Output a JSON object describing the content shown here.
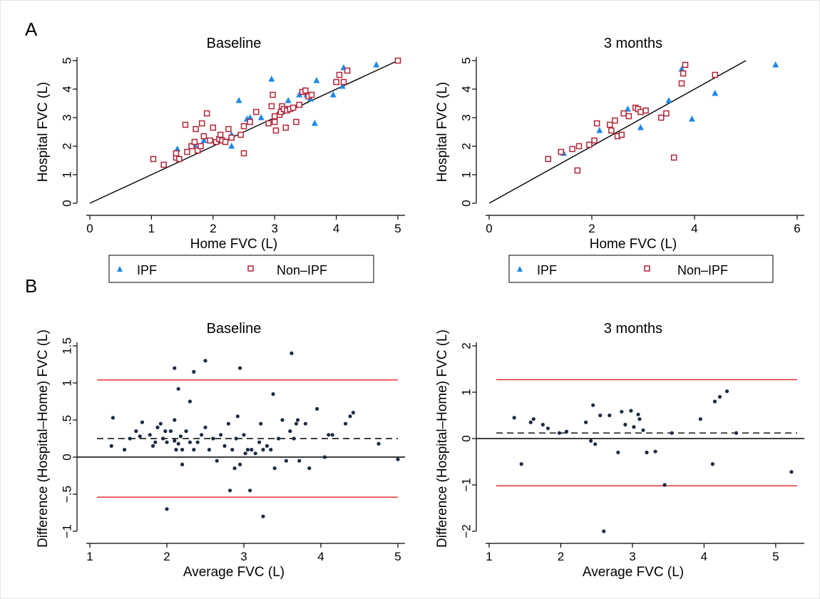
{
  "chart_data": [
    {
      "panel": "A",
      "type": "scatter",
      "title": "Baseline",
      "xlabel": "Home FVC (L)",
      "ylabel": "Hospital FVC (L)",
      "xlim": [
        0,
        5
      ],
      "ylim": [
        0,
        5
      ],
      "xticks": [
        0,
        1,
        2,
        3,
        4,
        5
      ],
      "xtick_labels": [
        "0",
        "1",
        "2",
        "3",
        "4",
        "5"
      ],
      "yticks": [
        0,
        1,
        2,
        3,
        4,
        5
      ],
      "ytick_labels": [
        "0",
        "1",
        "2",
        "3",
        "4",
        "5"
      ],
      "line_of_identity": [
        [
          0,
          0
        ],
        [
          5,
          5
        ]
      ],
      "legend": "below",
      "series": [
        {
          "name": "IPF",
          "marker": "triangle",
          "color": "#1e88e5",
          "points": [
            [
              1.42,
              1.9
            ],
            [
              1.7,
              2.05
            ],
            [
              1.85,
              2.2
            ],
            [
              2.3,
              2.0
            ],
            [
              2.3,
              2.4
            ],
            [
              2.42,
              3.6
            ],
            [
              2.55,
              2.95
            ],
            [
              2.6,
              3.0
            ],
            [
              2.78,
              3.0
            ],
            [
              2.95,
              4.35
            ],
            [
              3.05,
              3.1
            ],
            [
              3.12,
              3.2
            ],
            [
              3.2,
              3.3
            ],
            [
              3.22,
              3.6
            ],
            [
              3.4,
              3.8
            ],
            [
              3.48,
              3.95
            ],
            [
              3.52,
              3.8
            ],
            [
              3.58,
              3.65
            ],
            [
              3.65,
              2.8
            ],
            [
              3.68,
              4.3
            ],
            [
              3.95,
              3.8
            ],
            [
              4.1,
              4.1
            ],
            [
              4.12,
              4.75
            ],
            [
              4.65,
              4.85
            ]
          ]
        },
        {
          "name": "Non-IPF",
          "marker": "square",
          "color": "#b22234",
          "points": [
            [
              1.03,
              1.55
            ],
            [
              1.2,
              1.35
            ],
            [
              1.4,
              1.6
            ],
            [
              1.4,
              1.75
            ],
            [
              1.45,
              1.55
            ],
            [
              1.55,
              2.75
            ],
            [
              1.58,
              1.8
            ],
            [
              1.65,
              2.0
            ],
            [
              1.7,
              2.15
            ],
            [
              1.72,
              2.6
            ],
            [
              1.75,
              1.85
            ],
            [
              1.8,
              2.0
            ],
            [
              1.82,
              2.8
            ],
            [
              1.85,
              2.35
            ],
            [
              1.9,
              3.15
            ],
            [
              1.95,
              2.2
            ],
            [
              2.0,
              2.65
            ],
            [
              2.05,
              2.15
            ],
            [
              2.1,
              2.25
            ],
            [
              2.12,
              2.4
            ],
            [
              2.15,
              2.2
            ],
            [
              2.2,
              2.15
            ],
            [
              2.25,
              2.6
            ],
            [
              2.3,
              2.3
            ],
            [
              2.45,
              2.4
            ],
            [
              2.5,
              1.75
            ],
            [
              2.5,
              2.7
            ],
            [
              2.6,
              2.85
            ],
            [
              2.7,
              3.2
            ],
            [
              2.9,
              2.8
            ],
            [
              2.95,
              3.4
            ],
            [
              2.97,
              3.8
            ],
            [
              3.0,
              2.85
            ],
            [
              3.0,
              3.05
            ],
            [
              3.02,
              2.55
            ],
            [
              3.08,
              3.1
            ],
            [
              3.1,
              3.2
            ],
            [
              3.12,
              3.4
            ],
            [
              3.15,
              3.3
            ],
            [
              3.18,
              2.65
            ],
            [
              3.2,
              3.25
            ],
            [
              3.25,
              3.3
            ],
            [
              3.3,
              3.35
            ],
            [
              3.35,
              2.85
            ],
            [
              3.4,
              3.45
            ],
            [
              3.45,
              3.9
            ],
            [
              3.5,
              3.95
            ],
            [
              3.55,
              3.75
            ],
            [
              3.6,
              3.8
            ],
            [
              4.0,
              4.25
            ],
            [
              4.05,
              4.5
            ],
            [
              4.12,
              4.25
            ],
            [
              4.18,
              4.65
            ],
            [
              5.0,
              5.0
            ]
          ]
        }
      ]
    },
    {
      "panel": "A",
      "type": "scatter",
      "title": "3 months",
      "xlabel": "Home FVC (L)",
      "ylabel": "Hospital FVC (L)",
      "xlim": [
        0,
        6
      ],
      "ylim": [
        0,
        5
      ],
      "xticks": [
        0,
        2,
        4,
        6
      ],
      "xtick_labels": [
        "0",
        "2",
        "4",
        "6"
      ],
      "yticks": [
        0,
        1,
        2,
        3,
        4,
        5
      ],
      "ytick_labels": [
        "0",
        "1",
        "2",
        "3",
        "4",
        "5"
      ],
      "line_of_identity": [
        [
          0,
          0
        ],
        [
          5,
          5
        ]
      ],
      "legend": "below",
      "series": [
        {
          "name": "IPF",
          "marker": "triangle",
          "color": "#1e88e5",
          "points": [
            [
              1.45,
              1.75
            ],
            [
              2.15,
              2.55
            ],
            [
              2.7,
              3.3
            ],
            [
              2.95,
              2.65
            ],
            [
              3.5,
              3.6
            ],
            [
              3.75,
              4.7
            ],
            [
              3.95,
              2.95
            ],
            [
              4.4,
              3.85
            ],
            [
              5.58,
              4.85
            ]
          ]
        },
        {
          "name": "Non-IPF",
          "marker": "square",
          "color": "#b22234",
          "points": [
            [
              1.15,
              1.55
            ],
            [
              1.4,
              1.8
            ],
            [
              1.62,
              1.9
            ],
            [
              1.72,
              1.15
            ],
            [
              1.75,
              2.0
            ],
            [
              1.95,
              2.05
            ],
            [
              2.05,
              2.2
            ],
            [
              2.1,
              2.8
            ],
            [
              2.35,
              2.75
            ],
            [
              2.38,
              2.55
            ],
            [
              2.45,
              2.9
            ],
            [
              2.5,
              2.35
            ],
            [
              2.58,
              2.4
            ],
            [
              2.62,
              3.15
            ],
            [
              2.72,
              3.05
            ],
            [
              2.85,
              3.35
            ],
            [
              2.9,
              3.3
            ],
            [
              2.95,
              3.2
            ],
            [
              3.05,
              3.25
            ],
            [
              3.35,
              3.0
            ],
            [
              3.45,
              3.15
            ],
            [
              3.6,
              1.6
            ],
            [
              3.75,
              4.2
            ],
            [
              3.78,
              4.55
            ],
            [
              3.82,
              4.85
            ],
            [
              4.4,
              4.5
            ]
          ]
        }
      ]
    },
    {
      "panel": "B",
      "type": "scatter",
      "title": "Baseline",
      "xlabel": "Average FVC (L)",
      "ylabel": "Difference (Hospital–Home) FVC (L)",
      "xlim": [
        1,
        5
      ],
      "ylim": [
        -1,
        1.5
      ],
      "xticks": [
        1,
        2,
        3,
        4,
        5
      ],
      "xtick_labels": [
        "1",
        "2",
        "3",
        "4",
        "5"
      ],
      "yticks": [
        -1,
        -0.5,
        0,
        0.5,
        1,
        1.5
      ],
      "ytick_labels": [
        "−1",
        "−.5",
        "0",
        ".5",
        "1",
        "1.5"
      ],
      "mean_difference": 0.25,
      "limits_of_agreement": [
        -0.54,
        1.04
      ],
      "zero_line": 0,
      "series": [
        {
          "name": "",
          "marker": "dot",
          "color": "#1c2a44",
          "points": [
            [
              1.28,
              0.15
            ],
            [
              1.3,
              0.53
            ],
            [
              1.45,
              0.1
            ],
            [
              1.52,
              0.25
            ],
            [
              1.6,
              0.35
            ],
            [
              1.65,
              0.28
            ],
            [
              1.68,
              0.47
            ],
            [
              1.78,
              0.3
            ],
            [
              1.82,
              0.15
            ],
            [
              1.85,
              0.2
            ],
            [
              1.88,
              0.4
            ],
            [
              1.92,
              0.45
            ],
            [
              1.95,
              0.25
            ],
            [
              1.98,
              0.35
            ],
            [
              2.0,
              0.2
            ],
            [
              2.05,
              0.35
            ],
            [
              2.1,
              0.22
            ],
            [
              2.1,
              0.5
            ],
            [
              2.12,
              0.1
            ],
            [
              2.15,
              0.18
            ],
            [
              2.18,
              0.28
            ],
            [
              2.2,
              0.1
            ],
            [
              2.2,
              -0.1
            ],
            [
              2.25,
              0.35
            ],
            [
              2.3,
              0.2
            ],
            [
              2.3,
              0.75
            ],
            [
              2.35,
              0.1
            ],
            [
              2.4,
              0.2
            ],
            [
              2.45,
              0.3
            ],
            [
              2.5,
              0.4
            ],
            [
              2.55,
              0.1
            ],
            [
              2.6,
              0.25
            ],
            [
              2.65,
              -0.05
            ],
            [
              2.7,
              0.3
            ],
            [
              2.75,
              0.15
            ],
            [
              2.8,
              0.45
            ],
            [
              2.82,
              -0.45
            ],
            [
              2.85,
              0.1
            ],
            [
              2.88,
              -0.15
            ],
            [
              2.9,
              0.25
            ],
            [
              2.92,
              0.55
            ],
            [
              2.95,
              -0.1
            ],
            [
              3.0,
              0.3
            ],
            [
              3.02,
              0.05
            ],
            [
              3.05,
              0.1
            ],
            [
              3.08,
              -0.45
            ],
            [
              3.1,
              0.1
            ],
            [
              3.15,
              0.05
            ],
            [
              3.2,
              0.2
            ],
            [
              3.22,
              0.45
            ],
            [
              3.25,
              0.1
            ],
            [
              3.25,
              -0.8
            ],
            [
              3.3,
              0.15
            ],
            [
              3.35,
              0.1
            ],
            [
              3.38,
              0.85
            ],
            [
              3.4,
              -0.15
            ],
            [
              3.45,
              0.25
            ],
            [
              3.5,
              0.5
            ],
            [
              3.55,
              -0.05
            ],
            [
              3.6,
              0.35
            ],
            [
              3.65,
              0.25
            ],
            [
              3.68,
              0.45
            ],
            [
              3.7,
              0.5
            ],
            [
              3.72,
              -0.05
            ],
            [
              3.8,
              0.45
            ],
            [
              3.85,
              -0.15
            ],
            [
              3.95,
              0.65
            ],
            [
              4.05,
              0.0
            ],
            [
              4.1,
              0.3
            ],
            [
              4.15,
              0.3
            ],
            [
              4.32,
              0.45
            ],
            [
              4.38,
              0.55
            ],
            [
              4.42,
              0.6
            ],
            [
              4.75,
              0.18
            ],
            [
              5.0,
              -0.03
            ],
            [
              2.0,
              -0.7
            ],
            [
              2.1,
              1.2
            ],
            [
              2.35,
              1.15
            ],
            [
              2.5,
              1.3
            ],
            [
              2.95,
              1.2
            ],
            [
              3.62,
              1.4
            ],
            [
              2.15,
              0.92
            ]
          ]
        }
      ]
    },
    {
      "panel": "B",
      "type": "scatter",
      "title": "3 months",
      "xlabel": "Average FVC (L)",
      "ylabel": "Difference (Hospital–Home) FVC (L)",
      "xlim": [
        1,
        5.3
      ],
      "ylim": [
        -2,
        2
      ],
      "xticks": [
        1,
        2,
        3,
        4,
        5
      ],
      "xtick_labels": [
        "1",
        "2",
        "3",
        "4",
        "5"
      ],
      "yticks": [
        -2,
        -1,
        0,
        1,
        2
      ],
      "ytick_labels": [
        "−2",
        "−1",
        "0",
        "1",
        "2"
      ],
      "mean_difference": 0.12,
      "limits_of_agreement": [
        -1.02,
        1.27
      ],
      "zero_line": 0,
      "series": [
        {
          "name": "",
          "marker": "dot",
          "color": "#1c2a44",
          "points": [
            [
              1.35,
              0.45
            ],
            [
              1.45,
              -0.55
            ],
            [
              1.58,
              0.35
            ],
            [
              1.62,
              0.42
            ],
            [
              1.75,
              0.3
            ],
            [
              1.82,
              0.22
            ],
            [
              1.98,
              0.12
            ],
            [
              2.08,
              0.15
            ],
            [
              2.35,
              0.35
            ],
            [
              2.42,
              -0.05
            ],
            [
              2.45,
              0.72
            ],
            [
              2.48,
              -0.12
            ],
            [
              2.55,
              0.5
            ],
            [
              2.6,
              -2.0
            ],
            [
              2.68,
              0.5
            ],
            [
              2.8,
              -0.3
            ],
            [
              2.85,
              0.58
            ],
            [
              2.9,
              0.3
            ],
            [
              2.98,
              0.6
            ],
            [
              3.02,
              0.25
            ],
            [
              3.08,
              0.52
            ],
            [
              3.1,
              0.42
            ],
            [
              3.15,
              0.18
            ],
            [
              3.2,
              -0.3
            ],
            [
              3.32,
              -0.28
            ],
            [
              3.45,
              -1.0
            ],
            [
              3.55,
              0.12
            ],
            [
              3.95,
              0.42
            ],
            [
              4.12,
              -0.55
            ],
            [
              4.15,
              0.8
            ],
            [
              4.22,
              0.9
            ],
            [
              4.32,
              1.02
            ],
            [
              4.45,
              0.12
            ],
            [
              5.22,
              -0.72
            ]
          ]
        }
      ]
    }
  ],
  "panel_labels": [
    "A",
    "B"
  ],
  "legend_left": {
    "items": [
      "IPF",
      "Non–IPF"
    ]
  },
  "legend_right": {
    "items": [
      "IPF",
      "Non–IPF"
    ]
  },
  "colors": {
    "ipf": "#1e88e5",
    "non_ipf": "#b22234",
    "loa": "#e0201e",
    "dot": "#1c2a44",
    "axis": "#000000"
  }
}
